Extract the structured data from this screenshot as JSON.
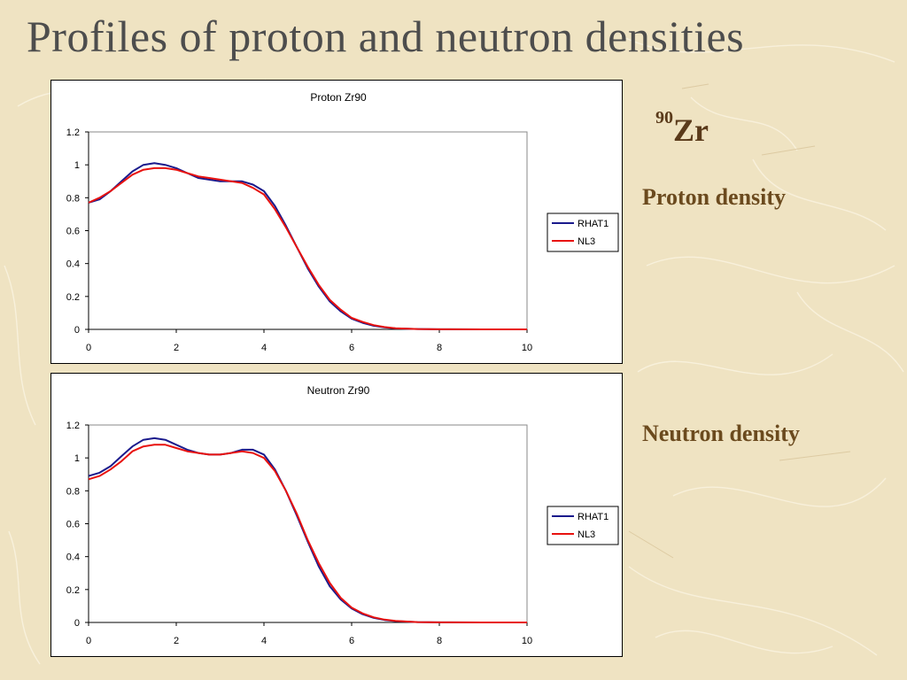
{
  "slide": {
    "title": "Profiles of proton and neutron densities",
    "nucleus_mass": "90",
    "nucleus_symbol": "Zr",
    "proton_label": "Proton density",
    "neutron_label": "Neutron density",
    "background_color": "#efe3c2"
  },
  "chart_data": [
    {
      "type": "line",
      "title": "Proton Zr90",
      "xlabel": "",
      "ylabel": "",
      "xlim": [
        0,
        10
      ],
      "ylim": [
        0,
        1.2
      ],
      "xticks": [
        "0",
        "2",
        "4",
        "6",
        "8",
        "10"
      ],
      "yticks": [
        "0",
        "0.2",
        "0.4",
        "0.6",
        "0.8",
        "1",
        "1.2"
      ],
      "grid": false,
      "legend_position": "right",
      "series": [
        {
          "name": "RHAT1",
          "color": "#1a1a8c",
          "x": [
            0,
            0.25,
            0.5,
            0.75,
            1.0,
            1.25,
            1.5,
            1.75,
            2.0,
            2.25,
            2.5,
            2.75,
            3.0,
            3.25,
            3.5,
            3.75,
            4.0,
            4.25,
            4.5,
            4.75,
            5.0,
            5.25,
            5.5,
            5.75,
            6.0,
            6.25,
            6.5,
            6.75,
            7.0,
            7.5,
            8.0,
            9.0,
            10.0
          ],
          "y": [
            0.77,
            0.79,
            0.84,
            0.9,
            0.96,
            1.0,
            1.01,
            1.0,
            0.98,
            0.95,
            0.92,
            0.91,
            0.9,
            0.9,
            0.9,
            0.88,
            0.84,
            0.75,
            0.63,
            0.5,
            0.37,
            0.26,
            0.17,
            0.11,
            0.065,
            0.04,
            0.022,
            0.012,
            0.006,
            0.002,
            0.0005,
            0,
            0
          ]
        },
        {
          "name": "NL3",
          "color": "#e8120f",
          "x": [
            0,
            0.25,
            0.5,
            0.75,
            1.0,
            1.25,
            1.5,
            1.75,
            2.0,
            2.25,
            2.5,
            2.75,
            3.0,
            3.25,
            3.5,
            3.75,
            4.0,
            4.25,
            4.5,
            4.75,
            5.0,
            5.25,
            5.5,
            5.75,
            6.0,
            6.25,
            6.5,
            6.75,
            7.0,
            7.5,
            8.0,
            9.0,
            10.0
          ],
          "y": [
            0.77,
            0.8,
            0.84,
            0.89,
            0.94,
            0.97,
            0.98,
            0.98,
            0.97,
            0.95,
            0.93,
            0.92,
            0.91,
            0.9,
            0.89,
            0.86,
            0.82,
            0.73,
            0.62,
            0.5,
            0.38,
            0.27,
            0.18,
            0.12,
            0.07,
            0.045,
            0.026,
            0.014,
            0.007,
            0.002,
            0.0005,
            0,
            0
          ]
        }
      ]
    },
    {
      "type": "line",
      "title": "Neutron Zr90",
      "xlabel": "",
      "ylabel": "",
      "xlim": [
        0,
        10
      ],
      "ylim": [
        0,
        1.2
      ],
      "xticks": [
        "0",
        "2",
        "4",
        "6",
        "8",
        "10"
      ],
      "yticks": [
        "0",
        "0.2",
        "0.4",
        "0.6",
        "0.8",
        "1",
        "1.2"
      ],
      "grid": false,
      "legend_position": "right",
      "series": [
        {
          "name": "RHAT1",
          "color": "#1a1a8c",
          "x": [
            0,
            0.25,
            0.5,
            0.75,
            1.0,
            1.25,
            1.5,
            1.75,
            2.0,
            2.25,
            2.5,
            2.75,
            3.0,
            3.25,
            3.5,
            3.75,
            4.0,
            4.25,
            4.5,
            4.75,
            5.0,
            5.25,
            5.5,
            5.75,
            6.0,
            6.25,
            6.5,
            6.75,
            7.0,
            7.5,
            8.0,
            9.0,
            10.0
          ],
          "y": [
            0.89,
            0.91,
            0.95,
            1.01,
            1.07,
            1.11,
            1.12,
            1.11,
            1.08,
            1.05,
            1.03,
            1.02,
            1.02,
            1.03,
            1.05,
            1.05,
            1.02,
            0.93,
            0.8,
            0.65,
            0.49,
            0.34,
            0.22,
            0.14,
            0.085,
            0.05,
            0.028,
            0.015,
            0.008,
            0.002,
            0.0005,
            0,
            0
          ]
        },
        {
          "name": "NL3",
          "color": "#e8120f",
          "x": [
            0,
            0.25,
            0.5,
            0.75,
            1.0,
            1.25,
            1.5,
            1.75,
            2.0,
            2.25,
            2.5,
            2.75,
            3.0,
            3.25,
            3.5,
            3.75,
            4.0,
            4.25,
            4.5,
            4.75,
            5.0,
            5.25,
            5.5,
            5.75,
            6.0,
            6.25,
            6.5,
            6.75,
            7.0,
            7.5,
            8.0,
            9.0,
            10.0
          ],
          "y": [
            0.87,
            0.89,
            0.93,
            0.98,
            1.04,
            1.07,
            1.08,
            1.08,
            1.06,
            1.04,
            1.03,
            1.02,
            1.02,
            1.03,
            1.04,
            1.03,
            1.0,
            0.92,
            0.8,
            0.66,
            0.5,
            0.36,
            0.24,
            0.15,
            0.09,
            0.055,
            0.031,
            0.017,
            0.009,
            0.002,
            0.0005,
            0,
            0
          ]
        }
      ]
    }
  ]
}
